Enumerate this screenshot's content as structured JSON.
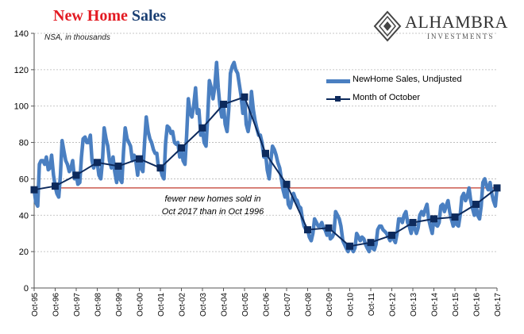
{
  "title": {
    "part1": "New Home",
    "part2": "Sales"
  },
  "subtitle": "NSA, in thousands",
  "logo": {
    "name": "ALHAMBRA",
    "sub": "INVESTMENTS"
  },
  "legend": [
    {
      "label": "NewHome Sales, Undjusted"
    },
    {
      "label": "Month of October"
    }
  ],
  "annotation": {
    "line1": "fewer new homes sold in",
    "line2": "Oct 2017 than in Oct 1996"
  },
  "colors": {
    "monthly": "#4a7fc1",
    "october": "#0d2a5c",
    "arrow": "#c0392b",
    "title_red": "#e31b23",
    "title_blue": "#1a3f73"
  },
  "chart_data": {
    "type": "line",
    "ylim": [
      0,
      140
    ],
    "yticks": [
      0,
      20,
      40,
      60,
      80,
      100,
      120,
      140
    ],
    "xlim": [
      1995.75,
      2017.75
    ],
    "x_tick_labels": [
      "Oct-95",
      "Oct-96",
      "Oct-97",
      "Oct-98",
      "Oct-99",
      "Oct-00",
      "Oct-01",
      "Oct-02",
      "Oct-03",
      "Oct-04",
      "Oct-05",
      "Oct-06",
      "Oct-07",
      "Oct-08",
      "Oct-09",
      "Oct-10",
      "Oct-11",
      "Oct-12",
      "Oct-13",
      "Oct-14",
      "Oct-15",
      "Oct-16",
      "Oct-17"
    ],
    "reference_line": {
      "value": 55,
      "from_year": 1996.8
    },
    "series": [
      {
        "name": "NewHome Sales, Undjusted",
        "x": [
          1995.75,
          1995.83,
          1995.92,
          1996.0,
          1996.08,
          1996.17,
          1996.25,
          1996.33,
          1996.42,
          1996.5,
          1996.58,
          1996.67,
          1996.75,
          1996.83,
          1996.92,
          1997.0,
          1997.08,
          1997.17,
          1997.25,
          1997.33,
          1997.42,
          1997.5,
          1997.58,
          1997.67,
          1997.75,
          1997.83,
          1997.92,
          1998.0,
          1998.08,
          1998.17,
          1998.25,
          1998.33,
          1998.42,
          1998.5,
          1998.58,
          1998.67,
          1998.75,
          1998.83,
          1998.92,
          1999.0,
          1999.08,
          1999.17,
          1999.25,
          1999.33,
          1999.42,
          1999.5,
          1999.58,
          1999.67,
          1999.75,
          1999.83,
          1999.92,
          2000.0,
          2000.08,
          2000.17,
          2000.25,
          2000.33,
          2000.42,
          2000.5,
          2000.58,
          2000.67,
          2000.75,
          2000.83,
          2000.92,
          2001.0,
          2001.08,
          2001.17,
          2001.25,
          2001.33,
          2001.42,
          2001.5,
          2001.58,
          2001.67,
          2001.75,
          2001.83,
          2001.92,
          2002.0,
          2002.08,
          2002.17,
          2002.25,
          2002.33,
          2002.42,
          2002.5,
          2002.58,
          2002.67,
          2002.75,
          2002.83,
          2002.92,
          2003.0,
          2003.08,
          2003.17,
          2003.25,
          2003.33,
          2003.42,
          2003.5,
          2003.58,
          2003.67,
          2003.75,
          2003.83,
          2003.92,
          2004.0,
          2004.08,
          2004.17,
          2004.25,
          2004.33,
          2004.42,
          2004.5,
          2004.58,
          2004.67,
          2004.75,
          2004.83,
          2004.92,
          2005.0,
          2005.08,
          2005.17,
          2005.25,
          2005.33,
          2005.42,
          2005.5,
          2005.58,
          2005.67,
          2005.75,
          2005.83,
          2005.92,
          2006.0,
          2006.08,
          2006.17,
          2006.25,
          2006.33,
          2006.42,
          2006.5,
          2006.58,
          2006.67,
          2006.75,
          2006.83,
          2006.92,
          2007.0,
          2007.08,
          2007.17,
          2007.25,
          2007.33,
          2007.42,
          2007.5,
          2007.58,
          2007.67,
          2007.75,
          2007.83,
          2007.92,
          2008.0,
          2008.08,
          2008.17,
          2008.25,
          2008.33,
          2008.42,
          2008.5,
          2008.58,
          2008.67,
          2008.75,
          2008.83,
          2008.92,
          2009.0,
          2009.08,
          2009.17,
          2009.25,
          2009.33,
          2009.42,
          2009.5,
          2009.58,
          2009.67,
          2009.75,
          2009.83,
          2009.92,
          2010.0,
          2010.08,
          2010.17,
          2010.25,
          2010.33,
          2010.42,
          2010.5,
          2010.58,
          2010.67,
          2010.75,
          2010.83,
          2010.92,
          2011.0,
          2011.08,
          2011.17,
          2011.25,
          2011.33,
          2011.42,
          2011.5,
          2011.58,
          2011.67,
          2011.75,
          2011.83,
          2011.92,
          2012.0,
          2012.08,
          2012.17,
          2012.25,
          2012.33,
          2012.42,
          2012.5,
          2012.58,
          2012.67,
          2012.75,
          2012.83,
          2012.92,
          2013.0,
          2013.08,
          2013.17,
          2013.25,
          2013.33,
          2013.42,
          2013.5,
          2013.58,
          2013.67,
          2013.75,
          2013.83,
          2013.92,
          2014.0,
          2014.08,
          2014.17,
          2014.25,
          2014.33,
          2014.42,
          2014.5,
          2014.58,
          2014.67,
          2014.75,
          2014.83,
          2014.92,
          2015.0,
          2015.08,
          2015.17,
          2015.25,
          2015.33,
          2015.42,
          2015.5,
          2015.58,
          2015.67,
          2015.75,
          2015.83,
          2015.92,
          2016.0,
          2016.08,
          2016.17,
          2016.25,
          2016.33,
          2016.42,
          2016.5,
          2016.58,
          2016.67,
          2016.75,
          2016.83,
          2016.92,
          2017.0,
          2017.08,
          2017.17,
          2017.25,
          2017.33,
          2017.42,
          2017.5,
          2017.58,
          2017.67,
          2017.75
        ],
        "values": [
          54,
          47,
          45,
          68,
          70,
          70,
          68,
          72,
          65,
          66,
          73,
          62,
          56,
          52,
          50,
          62,
          81,
          75,
          70,
          68,
          64,
          66,
          70,
          60,
          62,
          57,
          58,
          72,
          82,
          83,
          80,
          80,
          84,
          70,
          66,
          70,
          69,
          62,
          60,
          70,
          88,
          82,
          78,
          70,
          66,
          72,
          64,
          58,
          67,
          60,
          58,
          75,
          88,
          82,
          80,
          78,
          70,
          73,
          70,
          62,
          71,
          66,
          64,
          80,
          94,
          86,
          82,
          80,
          76,
          74,
          74,
          65,
          66,
          62,
          60,
          80,
          89,
          88,
          85,
          86,
          80,
          79,
          80,
          72,
          77,
          70,
          68,
          84,
          104,
          96,
          94,
          100,
          110,
          96,
          98,
          84,
          88,
          80,
          78,
          94,
          114,
          110,
          104,
          110,
          124,
          110,
          100,
          94,
          101,
          90,
          86,
          98,
          118,
          122,
          124,
          120,
          118,
          112,
          106,
          96,
          105,
          90,
          86,
          92,
          108,
          98,
          92,
          88,
          84,
          84,
          80,
          72,
          74,
          65,
          60,
          70,
          78,
          76,
          73,
          69,
          66,
          60,
          54,
          50,
          57,
          46,
          44,
          48,
          52,
          49,
          48,
          45,
          44,
          38,
          34,
          32,
          32,
          28,
          26,
          30,
          38,
          36,
          34,
          34,
          36,
          33,
          32,
          29,
          33,
          27,
          28,
          30,
          42,
          40,
          38,
          34,
          26,
          24,
          22,
          20,
          23,
          22,
          20,
          22,
          30,
          28,
          26,
          28,
          27,
          24,
          22,
          20,
          25,
          22,
          21,
          24,
          32,
          34,
          34,
          32,
          31,
          30,
          28,
          26,
          29,
          27,
          25,
          30,
          38,
          38,
          36,
          40,
          42,
          36,
          34,
          30,
          36,
          33,
          30,
          33,
          40,
          42,
          40,
          43,
          46,
          38,
          34,
          30,
          38,
          35,
          34,
          36,
          45,
          46,
          42,
          45,
          48,
          42,
          38,
          34,
          39,
          35,
          34,
          40,
          50,
          52,
          48,
          50,
          55,
          48,
          44,
          40,
          46,
          40,
          38,
          45,
          58,
          60,
          56,
          54,
          58,
          52,
          48,
          45,
          55
        ]
      },
      {
        "name": "Month of October",
        "x": [
          1995.75,
          1996.75,
          1997.75,
          1998.75,
          1999.75,
          2000.75,
          2001.75,
          2002.75,
          2003.75,
          2004.75,
          2005.75,
          2006.75,
          2007.75,
          2008.75,
          2009.75,
          2010.75,
          2011.75,
          2012.75,
          2013.75,
          2014.75,
          2015.75,
          2016.75,
          2017.75
        ],
        "values": [
          54,
          56,
          62,
          69,
          67,
          71,
          66,
          77,
          88,
          101,
          105,
          74,
          57,
          32,
          33,
          23,
          25,
          29,
          36,
          38,
          39,
          46,
          55
        ]
      }
    ]
  }
}
